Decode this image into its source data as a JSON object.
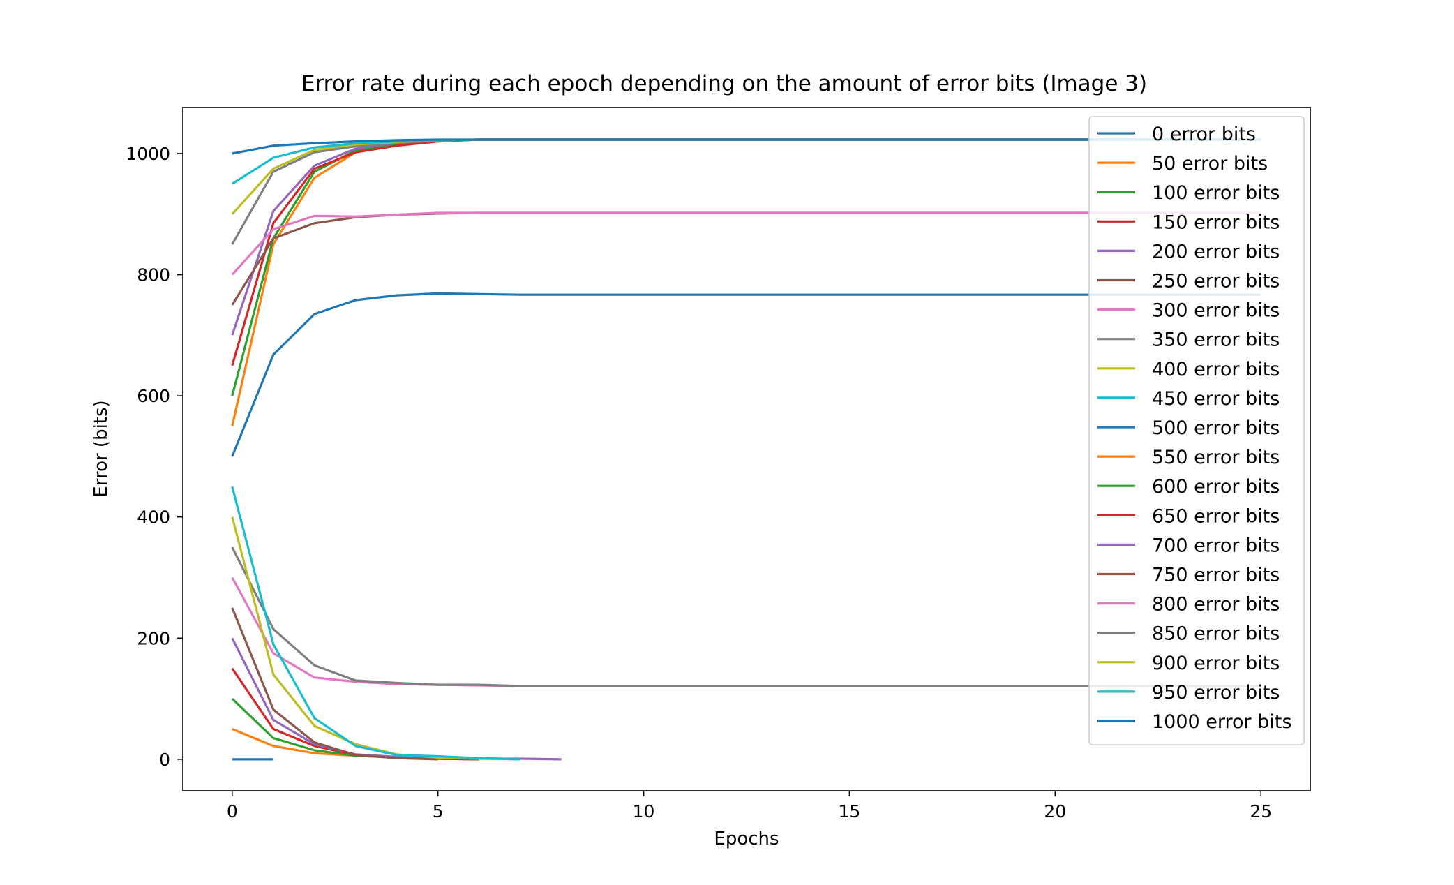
{
  "chart_data": {
    "type": "line",
    "title": "Error rate during each epoch depending on the amount of error bits (Image 3)",
    "xlabel": "Epochs",
    "ylabel": "Error (bits)",
    "xlim": [
      -1.2,
      26.2
    ],
    "ylim": [
      -52,
      1076
    ],
    "xticks": [
      0,
      5,
      10,
      15,
      20,
      25
    ],
    "yticks": [
      0,
      200,
      400,
      600,
      800,
      1000
    ],
    "grid": false,
    "legend_position": "top-right",
    "series": [
      {
        "name": "0 error bits",
        "color": "#1f77b4",
        "x": [
          0,
          1
        ],
        "y": [
          0,
          0
        ]
      },
      {
        "name": "50 error bits",
        "color": "#ff7f0e",
        "x": [
          0,
          1,
          2,
          3,
          4,
          5,
          6
        ],
        "y": [
          50,
          22,
          10,
          6,
          3,
          1,
          0
        ]
      },
      {
        "name": "100 error bits",
        "color": "#2ca02c",
        "x": [
          0,
          1,
          2,
          3,
          4,
          5,
          6
        ],
        "y": [
          100,
          35,
          15,
          6,
          3,
          1,
          0
        ]
      },
      {
        "name": "150 error bits",
        "color": "#d62728",
        "x": [
          0,
          1,
          2,
          3,
          4,
          5,
          6
        ],
        "y": [
          150,
          50,
          22,
          7,
          3,
          1,
          0
        ]
      },
      {
        "name": "200 error bits",
        "color": "#9467bd",
        "x": [
          0,
          1,
          2,
          3,
          4,
          5,
          6,
          7,
          8
        ],
        "y": [
          200,
          65,
          25,
          8,
          4,
          2,
          1,
          1,
          0
        ]
      },
      {
        "name": "250 error bits",
        "color": "#8c564b",
        "x": [
          0,
          1,
          2,
          3,
          4,
          5
        ],
        "y": [
          250,
          82,
          28,
          7,
          2,
          0
        ]
      },
      {
        "name": "300 error bits",
        "color": "#e377c2",
        "x": [
          0,
          1,
          2,
          3,
          4,
          5,
          6,
          7,
          8,
          9,
          10,
          11,
          12,
          13,
          14,
          15,
          16,
          17,
          18,
          19,
          20,
          21,
          22,
          23,
          24,
          25
        ],
        "y": [
          300,
          175,
          135,
          128,
          124,
          123,
          122,
          121,
          121,
          121,
          121,
          121,
          121,
          121,
          121,
          121,
          121,
          121,
          121,
          121,
          121,
          121,
          121,
          121,
          121,
          121
        ]
      },
      {
        "name": "350 error bits",
        "color": "#7f7f7f",
        "x": [
          0,
          1,
          2,
          3,
          4,
          5,
          6,
          7,
          8,
          9,
          10,
          11,
          12,
          13,
          14,
          15,
          16,
          17,
          18,
          19,
          20,
          21,
          22,
          23,
          24,
          25
        ],
        "y": [
          350,
          215,
          155,
          130,
          126,
          123,
          123,
          121,
          121,
          121,
          121,
          121,
          121,
          121,
          121,
          121,
          121,
          121,
          121,
          121,
          121,
          121,
          121,
          121,
          121,
          121
        ]
      },
      {
        "name": "400 error bits",
        "color": "#bcbd22",
        "x": [
          0,
          1,
          2,
          3,
          4,
          5,
          6,
          7
        ],
        "y": [
          400,
          140,
          55,
          25,
          8,
          3,
          1,
          0
        ]
      },
      {
        "name": "450 error bits",
        "color": "#17becf",
        "x": [
          0,
          1,
          2,
          3,
          4,
          5,
          6,
          7
        ],
        "y": [
          450,
          190,
          68,
          22,
          7,
          5,
          2,
          0
        ]
      },
      {
        "name": "500 error bits",
        "color": "#1f77b4",
        "x": [
          0,
          1,
          2,
          3,
          4,
          5,
          6,
          7,
          8,
          9,
          10,
          11,
          12,
          13,
          14,
          15,
          16,
          17,
          18,
          19,
          20,
          21,
          22,
          23,
          24,
          25
        ],
        "y": [
          500,
          668,
          735,
          758,
          766,
          769,
          768,
          767,
          767,
          767,
          767,
          767,
          767,
          767,
          767,
          767,
          767,
          767,
          767,
          767,
          767,
          767,
          767,
          767,
          767,
          767
        ]
      },
      {
        "name": "550 error bits",
        "color": "#ff7f0e",
        "x": [
          0,
          1,
          2,
          3,
          4,
          5,
          6,
          7,
          8,
          9,
          10,
          11,
          12,
          13,
          14,
          15,
          16,
          17,
          18,
          19,
          20,
          21,
          22,
          23,
          24,
          25
        ],
        "y": [
          550,
          850,
          960,
          1002,
          1015,
          1020,
          1023,
          1023,
          1023,
          1023,
          1023,
          1023,
          1023,
          1023,
          1023,
          1023,
          1023,
          1023,
          1023,
          1023,
          1023,
          1023,
          1023,
          1023,
          1023,
          1023
        ]
      },
      {
        "name": "600 error bits",
        "color": "#2ca02c",
        "x": [
          0,
          1,
          2,
          3,
          4,
          5,
          6,
          7,
          8,
          9,
          10,
          11,
          12,
          13,
          14,
          15,
          16,
          17,
          18,
          19,
          20,
          21,
          22,
          23,
          24,
          25
        ],
        "y": [
          600,
          860,
          970,
          1005,
          1015,
          1021,
          1023,
          1023,
          1023,
          1023,
          1023,
          1023,
          1023,
          1023,
          1023,
          1023,
          1023,
          1023,
          1023,
          1023,
          1023,
          1023,
          1023,
          1023,
          1023,
          1023
        ]
      },
      {
        "name": "650 error bits",
        "color": "#d62728",
        "x": [
          0,
          1,
          2,
          3,
          4,
          5,
          6,
          7,
          8,
          9,
          10,
          11,
          12,
          13,
          14,
          15,
          16,
          17,
          18,
          19,
          20,
          21,
          22,
          23,
          24,
          25
        ],
        "y": [
          650,
          885,
          975,
          1002,
          1013,
          1020,
          1023,
          1023,
          1023,
          1023,
          1023,
          1023,
          1023,
          1023,
          1023,
          1023,
          1023,
          1023,
          1023,
          1023,
          1023,
          1023,
          1023,
          1023,
          1023,
          1023
        ]
      },
      {
        "name": "700 error bits",
        "color": "#9467bd",
        "x": [
          0,
          1,
          2,
          3,
          4,
          5,
          6,
          7,
          8,
          9,
          10,
          11,
          12,
          13,
          14,
          15,
          16,
          17,
          18,
          19,
          20,
          21,
          22,
          23,
          24,
          25
        ],
        "y": [
          700,
          905,
          980,
          1008,
          1018,
          1022,
          1023,
          1023,
          1023,
          1023,
          1023,
          1023,
          1023,
          1023,
          1023,
          1023,
          1023,
          1023,
          1023,
          1023,
          1023,
          1023,
          1023,
          1023,
          1023,
          1023
        ]
      },
      {
        "name": "750 error bits",
        "color": "#8c564b",
        "x": [
          0,
          1,
          2,
          3,
          4,
          5,
          6,
          7,
          8,
          9,
          10,
          11,
          12,
          13,
          14,
          15,
          16,
          17,
          18,
          19,
          20,
          21,
          22,
          23,
          24,
          25
        ],
        "y": [
          750,
          860,
          885,
          895,
          899,
          901,
          902,
          902,
          902,
          902,
          902,
          902,
          902,
          902,
          902,
          902,
          902,
          902,
          902,
          902,
          902,
          902,
          902,
          902,
          902,
          902
        ]
      },
      {
        "name": "800 error bits",
        "color": "#e377c2",
        "x": [
          0,
          1,
          2,
          3,
          4,
          5,
          6,
          7,
          8,
          9,
          10,
          11,
          12,
          13,
          14,
          15,
          16,
          17,
          18,
          19,
          20,
          21,
          22,
          23,
          24,
          25
        ],
        "y": [
          800,
          875,
          897,
          896,
          899,
          902,
          902,
          902,
          902,
          902,
          902,
          902,
          902,
          902,
          902,
          902,
          902,
          902,
          902,
          902,
          902,
          902,
          902,
          902,
          902,
          902
        ]
      },
      {
        "name": "850 error bits",
        "color": "#7f7f7f",
        "x": [
          0,
          1,
          2,
          3,
          4,
          5,
          6,
          7,
          8,
          9,
          10,
          11,
          12,
          13,
          14,
          15,
          16,
          17,
          18,
          19,
          20,
          21,
          22,
          23,
          24,
          25
        ],
        "y": [
          850,
          970,
          1002,
          1012,
          1018,
          1021,
          1023,
          1023,
          1023,
          1023,
          1023,
          1023,
          1023,
          1023,
          1023,
          1023,
          1023,
          1023,
          1023,
          1023,
          1023,
          1023,
          1023,
          1023,
          1023,
          1023
        ]
      },
      {
        "name": "900 error bits",
        "color": "#bcbd22",
        "x": [
          0,
          1,
          2,
          3,
          4,
          5,
          6,
          7,
          8,
          9,
          10,
          11,
          12,
          13,
          14,
          15,
          16,
          17,
          18,
          19,
          20,
          21,
          22,
          23,
          24,
          25
        ],
        "y": [
          900,
          975,
          1006,
          1015,
          1019,
          1022,
          1023,
          1023,
          1023,
          1023,
          1023,
          1023,
          1023,
          1023,
          1023,
          1023,
          1023,
          1023,
          1023,
          1023,
          1023,
          1023,
          1023,
          1023,
          1023,
          1023
        ]
      },
      {
        "name": "950 error bits",
        "color": "#17becf",
        "x": [
          0,
          1,
          2,
          3,
          4,
          5,
          6,
          7,
          8,
          9,
          10,
          11,
          12,
          13,
          14,
          15,
          16,
          17,
          18,
          19,
          20,
          21,
          22,
          23,
          24,
          25
        ],
        "y": [
          950,
          993,
          1010,
          1017,
          1020,
          1022,
          1023,
          1023,
          1023,
          1023,
          1023,
          1023,
          1023,
          1023,
          1023,
          1023,
          1023,
          1023,
          1023,
          1023,
          1023,
          1023,
          1023,
          1023,
          1023,
          1023
        ]
      },
      {
        "name": "1000 error bits",
        "color": "#1f77b4",
        "x": [
          0,
          1,
          2,
          3,
          4,
          5,
          6,
          7,
          8,
          9,
          10,
          11,
          12,
          13,
          14,
          15,
          16,
          17,
          18,
          19,
          20,
          21,
          22,
          23,
          24,
          25
        ],
        "y": [
          1000,
          1013,
          1017,
          1020,
          1022,
          1023,
          1023,
          1023,
          1023,
          1023,
          1023,
          1023,
          1023,
          1023,
          1023,
          1023,
          1023,
          1023,
          1023,
          1023,
          1023,
          1023,
          1023,
          1023,
          1023,
          1023
        ]
      }
    ]
  }
}
